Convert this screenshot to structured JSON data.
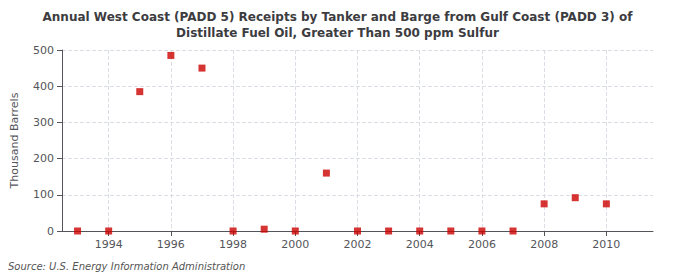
{
  "chart_data": {
    "type": "scatter",
    "title": "Annual West Coast (PADD 5) Receipts by Tanker and Barge from Gulf Coast (PADD 3) of\nDistillate Fuel Oil, Greater Than 500 ppm Sulfur",
    "ylabel": "Thousand Barrels",
    "annotation": "Source: U.S. Energy Information Administration",
    "x": [
      1993,
      1994,
      1995,
      1996,
      1997,
      1998,
      1999,
      2000,
      2001,
      2002,
      2003,
      2004,
      2005,
      2006,
      2007,
      2008,
      2009,
      2010
    ],
    "values": [
      0,
      0,
      385,
      485,
      450,
      0,
      5,
      0,
      160,
      0,
      0,
      0,
      0,
      0,
      0,
      75,
      92,
      75
    ],
    "color": "#cc0000",
    "marker": "square",
    "xlim": [
      1992.5,
      2011.5
    ],
    "xticks": [
      1994,
      1996,
      1998,
      2000,
      2002,
      2004,
      2006,
      2008,
      2010
    ],
    "ylim": [
      0,
      500
    ],
    "yticks": [
      0,
      100,
      200,
      300,
      400,
      500
    ],
    "grid": true
  }
}
